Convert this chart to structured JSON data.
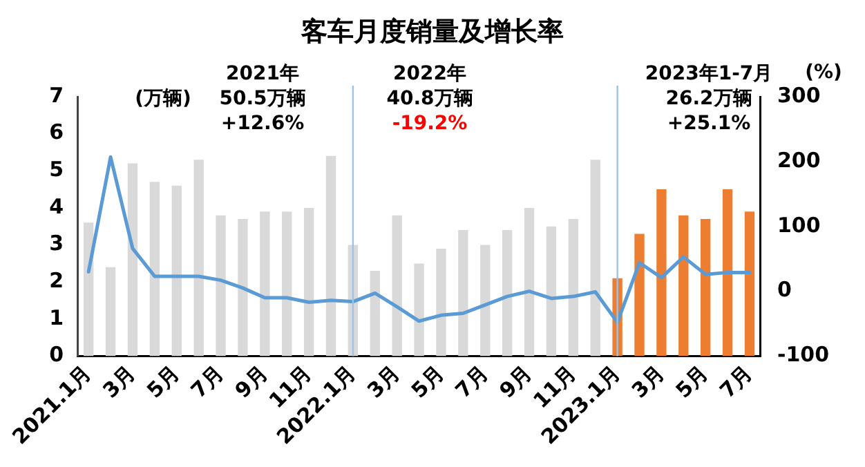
{
  "chart_data": {
    "type": "bar",
    "title": "客车月度销量及增长率",
    "ylabel": "(万辆)",
    "y2label": "(%)",
    "categories": [
      "2021.1月",
      null,
      "3月",
      null,
      "5月",
      null,
      "7月",
      null,
      "9月",
      null,
      "11月",
      null,
      "2022.1月",
      null,
      "3月",
      null,
      "5月",
      null,
      "7月",
      null,
      "9月",
      null,
      "11月",
      null,
      "2023.1月",
      null,
      "3月",
      null,
      "5月",
      null,
      "7月"
    ],
    "series": [
      {
        "colors": [
          "#d9d9d9",
          "#d9d9d9",
          "#d9d9d9",
          "#d9d9d9",
          "#d9d9d9",
          "#d9d9d9",
          "#d9d9d9",
          "#d9d9d9",
          "#d9d9d9",
          "#d9d9d9",
          "#d9d9d9",
          "#d9d9d9",
          "#d9d9d9",
          "#d9d9d9",
          "#d9d9d9",
          "#d9d9d9",
          "#d9d9d9",
          "#d9d9d9",
          "#d9d9d9",
          "#d9d9d9",
          "#d9d9d9",
          "#d9d9d9",
          "#d9d9d9",
          "#d9d9d9",
          "#ed7d31",
          "#ed7d31",
          "#ed7d31",
          "#ed7d31",
          "#ed7d31",
          "#ed7d31",
          "#ed7d31"
        ],
        "values": [
          3.6,
          2.4,
          5.2,
          4.7,
          4.6,
          5.3,
          3.8,
          3.7,
          3.9,
          3.9,
          4.0,
          5.4,
          3.0,
          2.3,
          3.8,
          2.5,
          2.9,
          3.4,
          3.0,
          3.4,
          4.0,
          3.5,
          3.7,
          5.3,
          2.1,
          3.3,
          4.5,
          3.8,
          3.7,
          4.5,
          3.9
        ]
      },
      {
        "type": "line",
        "axis": "y2",
        "color": "#5b9bd5",
        "values": [
          30,
          207,
          66,
          23,
          23,
          23,
          17,
          5,
          -10,
          -10,
          -17,
          -14,
          -16,
          -3,
          -24,
          -46,
          -37,
          -34,
          -21,
          -8,
          0,
          -11,
          -8,
          -1,
          -48,
          44,
          21,
          53,
          26,
          29,
          29
        ]
      }
    ],
    "ylim": [
      0,
      7
    ],
    "yticks": [
      0,
      1,
      2,
      3,
      4,
      5,
      6,
      7
    ],
    "y2lim": [
      -100,
      300
    ],
    "y2ticks": [
      -100,
      0,
      100,
      200,
      300
    ],
    "ref_lines": [
      {
        "axis": "x",
        "value": "2022.1月",
        "color": "#9dc3e6"
      },
      {
        "axis": "x",
        "value": "2023.1月",
        "color": "#9dc3e6"
      }
    ],
    "annotations": [
      "2021年",
      "50.5万辆",
      "+12.6%",
      "2022年",
      "40.8万辆",
      "-19.2%",
      "2023年1-7月",
      "26.2万辆",
      "+25.1%"
    ],
    "grid": false,
    "legend": false,
    "marker": "none",
    "line_style": "solid"
  }
}
